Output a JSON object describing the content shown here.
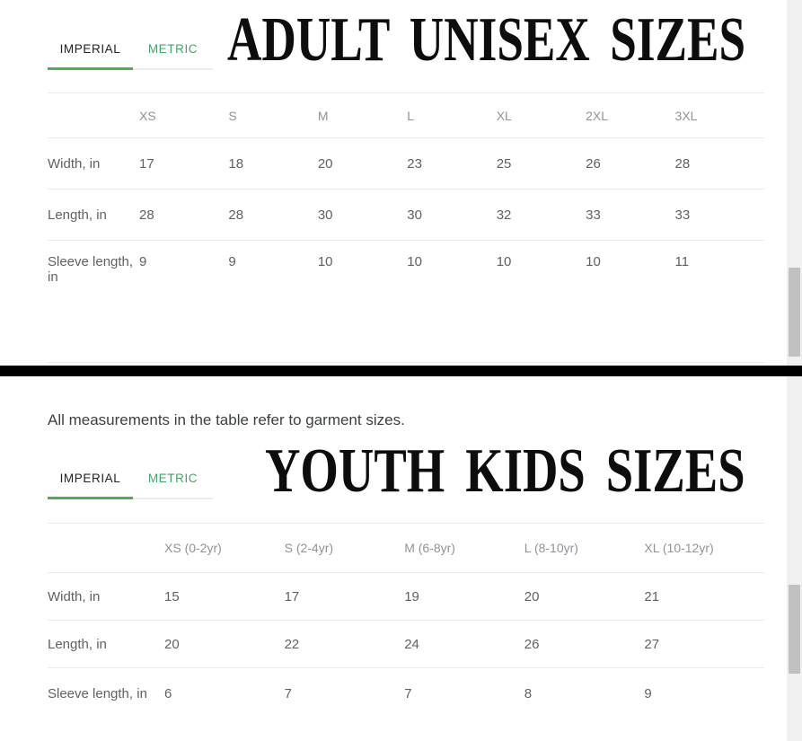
{
  "colors": {
    "accent_green": "#4caf50",
    "metric_tab_green": "#47a16a",
    "active_tab_text": "#212121",
    "column_header_text": "#8f9499",
    "cell_text": "#616161",
    "note_text": "#3c4043",
    "divider_black": "#000000",
    "row_border": "#e9eaec",
    "scrollbar_track": "#f0f0f0",
    "scrollbar_thumb": "#c1c1c1"
  },
  "sections": [
    {
      "title": "ADULT UNISEX SIZES",
      "tabs": [
        {
          "label": "IMPERIAL",
          "active": true
        },
        {
          "label": "METRIC",
          "active": false
        }
      ],
      "table": {
        "columns": [
          "XS",
          "S",
          "M",
          "L",
          "XL",
          "2XL",
          "3XL"
        ],
        "rows": [
          {
            "label": "Width, in",
            "values": [
              "17",
              "18",
              "20",
              "23",
              "25",
              "26",
              "28"
            ]
          },
          {
            "label": "Length, in",
            "values": [
              "28",
              "28",
              "30",
              "30",
              "32",
              "33",
              "33"
            ]
          },
          {
            "label": "Sleeve length, in",
            "values": [
              "9",
              "9",
              "10",
              "10",
              "10",
              "10",
              "11"
            ]
          }
        ]
      }
    },
    {
      "note": "All measurements in the table refer to garment sizes.",
      "title": "YOUTH KIDS SIZES",
      "tabs": [
        {
          "label": "IMPERIAL",
          "active": true
        },
        {
          "label": "METRIC",
          "active": false
        }
      ],
      "table": {
        "columns": [
          "XS (0-2yr)",
          "S (2-4yr)",
          "M (6-8yr)",
          "L (8-10yr)",
          "XL (10-12yr)"
        ],
        "rows": [
          {
            "label": "Width, in",
            "values": [
              "15",
              "17",
              "19",
              "20",
              "21"
            ]
          },
          {
            "label": "Length, in",
            "values": [
              "20",
              "22",
              "24",
              "26",
              "27"
            ]
          },
          {
            "label": "Sleeve length, in",
            "values": [
              "6",
              "7",
              "7",
              "8",
              "9"
            ]
          }
        ]
      }
    }
  ]
}
